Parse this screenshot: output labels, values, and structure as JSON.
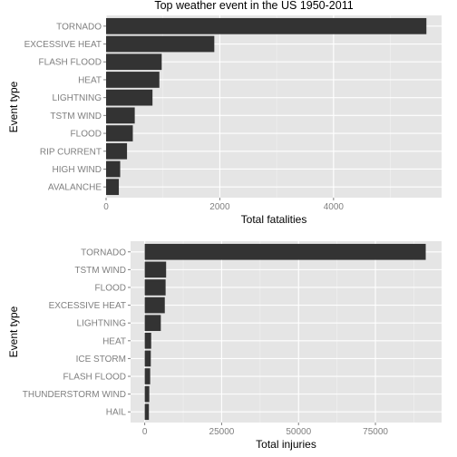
{
  "title": "Top weather event in the US 1950-2011",
  "chart_data": [
    {
      "type": "bar",
      "orientation": "horizontal",
      "title": "",
      "xlabel": "Total fatalities",
      "ylabel": "Event type",
      "xlim": [
        0,
        5900
      ],
      "xticks": [
        0,
        2000,
        4000
      ],
      "xtick_labels": [
        "0",
        "2000",
        "4000"
      ],
      "categories": [
        "TORNADO",
        "EXCESSIVE HEAT",
        "FLASH FLOOD",
        "HEAT",
        "LIGHTNING",
        "TSTM WIND",
        "FLOOD",
        "RIP CURRENT",
        "HIGH WIND",
        "AVALANCHE"
      ],
      "values": [
        5633,
        1903,
        978,
        937,
        816,
        504,
        470,
        368,
        248,
        224
      ],
      "grid": true,
      "bar_color": "#333333",
      "panel_color": "#e5e5e5"
    },
    {
      "type": "bar",
      "orientation": "horizontal",
      "title": "",
      "xlabel": "Total injuries",
      "ylabel": "Event type",
      "xlim": [
        -4600,
        96500
      ],
      "xticks": [
        0,
        25000,
        50000,
        75000
      ],
      "xtick_labels": [
        "0",
        "25000",
        "50000",
        "75000"
      ],
      "categories": [
        "TORNADO",
        "TSTM WIND",
        "FLOOD",
        "EXCESSIVE HEAT",
        "LIGHTNING",
        "HEAT",
        "ICE STORM",
        "FLASH FLOOD",
        "THUNDERSTORM WIND",
        "HAIL"
      ],
      "values": [
        91346,
        6957,
        6789,
        6525,
        5230,
        2100,
        1975,
        1777,
        1488,
        1361
      ],
      "grid": true,
      "bar_color": "#333333",
      "panel_color": "#e5e5e5"
    }
  ]
}
